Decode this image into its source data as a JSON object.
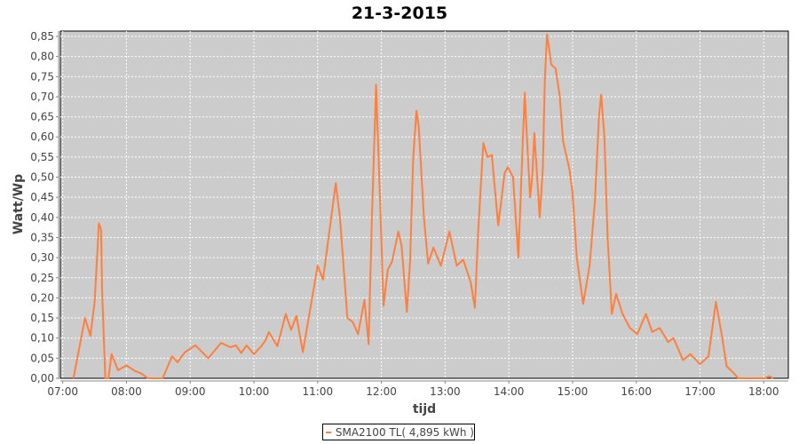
{
  "chart_data": {
    "type": "line",
    "title": "21-3-2015",
    "xlabel": "tijd",
    "ylabel": "Watt/Wp",
    "ylim": [
      0,
      0.86
    ],
    "xlim": [
      "06:57",
      "18:23"
    ],
    "x_ticks": [
      "07:00",
      "08:00",
      "09:00",
      "10:00",
      "11:00",
      "12:00",
      "13:00",
      "14:00",
      "15:00",
      "16:00",
      "17:00",
      "18:00"
    ],
    "y_ticks": [
      "0,00",
      "0,05",
      "0,10",
      "0,15",
      "0,20",
      "0,25",
      "0,30",
      "0,35",
      "0,40",
      "0,45",
      "0,50",
      "0,55",
      "0,60",
      "0,65",
      "0,70",
      "0,75",
      "0,80",
      "0,85"
    ],
    "grid": true,
    "legend_position": "bottom",
    "background_color": "#cccccc",
    "series": [
      {
        "name": "SMA2100 TL( 4,895 kWh )",
        "color": "#ff7f3f",
        "points": [
          [
            "07:10",
            0
          ],
          [
            "07:21",
            0.15
          ],
          [
            "07:26",
            0.105
          ],
          [
            "07:30",
            0.19
          ],
          [
            "07:34",
            0.385
          ],
          [
            "07:36",
            0.37
          ],
          [
            "07:37",
            0.22
          ],
          [
            "07:40",
            0
          ],
          [
            "07:43",
            0
          ],
          [
            "07:46",
            0.06
          ],
          [
            "07:52",
            0.02
          ],
          [
            "08:00",
            0.032
          ],
          [
            "08:08",
            0.018
          ],
          [
            "08:14",
            0.012
          ],
          [
            "08:20",
            0
          ],
          [
            "08:34",
            0
          ],
          [
            "08:43",
            0.055
          ],
          [
            "08:48",
            0.04
          ],
          [
            "08:55",
            0.065
          ],
          [
            "09:05",
            0.082
          ],
          [
            "09:17",
            0.05
          ],
          [
            "09:29",
            0.088
          ],
          [
            "09:38",
            0.077
          ],
          [
            "09:43",
            0.082
          ],
          [
            "09:48",
            0.063
          ],
          [
            "09:53",
            0.082
          ],
          [
            "10:00",
            0.06
          ],
          [
            "10:07",
            0.08
          ],
          [
            "10:11",
            0.095
          ],
          [
            "10:14",
            0.115
          ],
          [
            "10:22",
            0.08
          ],
          [
            "10:30",
            0.16
          ],
          [
            "10:35",
            0.12
          ],
          [
            "10:40",
            0.155
          ],
          [
            "10:46",
            0.065
          ],
          [
            "11:00",
            0.28
          ],
          [
            "11:05",
            0.245
          ],
          [
            "11:17",
            0.485
          ],
          [
            "11:21",
            0.4
          ],
          [
            "11:28",
            0.15
          ],
          [
            "11:33",
            0.14
          ],
          [
            "11:38",
            0.11
          ],
          [
            "11:44",
            0.195
          ],
          [
            "11:48",
            0.085
          ],
          [
            "11:51",
            0.39
          ],
          [
            "11:55",
            0.73
          ],
          [
            "11:58",
            0.5
          ],
          [
            "12:02",
            0.18
          ],
          [
            "12:06",
            0.27
          ],
          [
            "12:10",
            0.29
          ],
          [
            "12:16",
            0.365
          ],
          [
            "12:19",
            0.33
          ],
          [
            "12:24",
            0.165
          ],
          [
            "12:27",
            0.29
          ],
          [
            "12:30",
            0.55
          ],
          [
            "12:33",
            0.665
          ],
          [
            "12:35",
            0.63
          ],
          [
            "12:40",
            0.4
          ],
          [
            "12:44",
            0.285
          ],
          [
            "12:49",
            0.325
          ],
          [
            "12:56",
            0.28
          ],
          [
            "13:04",
            0.365
          ],
          [
            "13:11",
            0.28
          ],
          [
            "13:17",
            0.295
          ],
          [
            "13:24",
            0.24
          ],
          [
            "13:28",
            0.175
          ],
          [
            "13:31",
            0.36
          ],
          [
            "13:36",
            0.585
          ],
          [
            "13:40",
            0.55
          ],
          [
            "13:44",
            0.555
          ],
          [
            "13:50",
            0.38
          ],
          [
            "13:56",
            0.51
          ],
          [
            "13:59",
            0.525
          ],
          [
            "14:04",
            0.5
          ],
          [
            "14:09",
            0.3
          ],
          [
            "14:13",
            0.58
          ],
          [
            "14:15",
            0.71
          ],
          [
            "14:17",
            0.6
          ],
          [
            "14:20",
            0.45
          ],
          [
            "14:22",
            0.5
          ],
          [
            "14:24",
            0.61
          ],
          [
            "14:29",
            0.4
          ],
          [
            "14:32",
            0.52
          ],
          [
            "14:34",
            0.75
          ],
          [
            "14:36",
            0.855
          ],
          [
            "14:40",
            0.78
          ],
          [
            "14:44",
            0.77
          ],
          [
            "14:48",
            0.7
          ],
          [
            "14:51",
            0.59
          ],
          [
            "14:57",
            0.52
          ],
          [
            "15:00",
            0.46
          ],
          [
            "15:04",
            0.3
          ],
          [
            "15:10",
            0.185
          ],
          [
            "15:16",
            0.28
          ],
          [
            "15:21",
            0.44
          ],
          [
            "15:25",
            0.655
          ],
          [
            "15:27",
            0.705
          ],
          [
            "15:30",
            0.6
          ],
          [
            "15:33",
            0.35
          ],
          [
            "15:37",
            0.16
          ],
          [
            "15:41",
            0.21
          ],
          [
            "15:47",
            0.16
          ],
          [
            "15:54",
            0.125
          ],
          [
            "16:01",
            0.11
          ],
          [
            "16:09",
            0.16
          ],
          [
            "16:15",
            0.115
          ],
          [
            "16:22",
            0.125
          ],
          [
            "16:30",
            0.09
          ],
          [
            "16:35",
            0.1
          ],
          [
            "16:44",
            0.045
          ],
          [
            "16:51",
            0.06
          ],
          [
            "17:00",
            0.035
          ],
          [
            "17:08",
            0.055
          ],
          [
            "17:15",
            0.19
          ],
          [
            "17:21",
            0.1
          ],
          [
            "17:25",
            0.03
          ],
          [
            "17:31",
            0.015
          ],
          [
            "17:36",
            0
          ],
          [
            "18:01",
            0
          ],
          [
            "18:05",
            0.005
          ],
          [
            "18:09",
            0
          ]
        ]
      }
    ]
  }
}
